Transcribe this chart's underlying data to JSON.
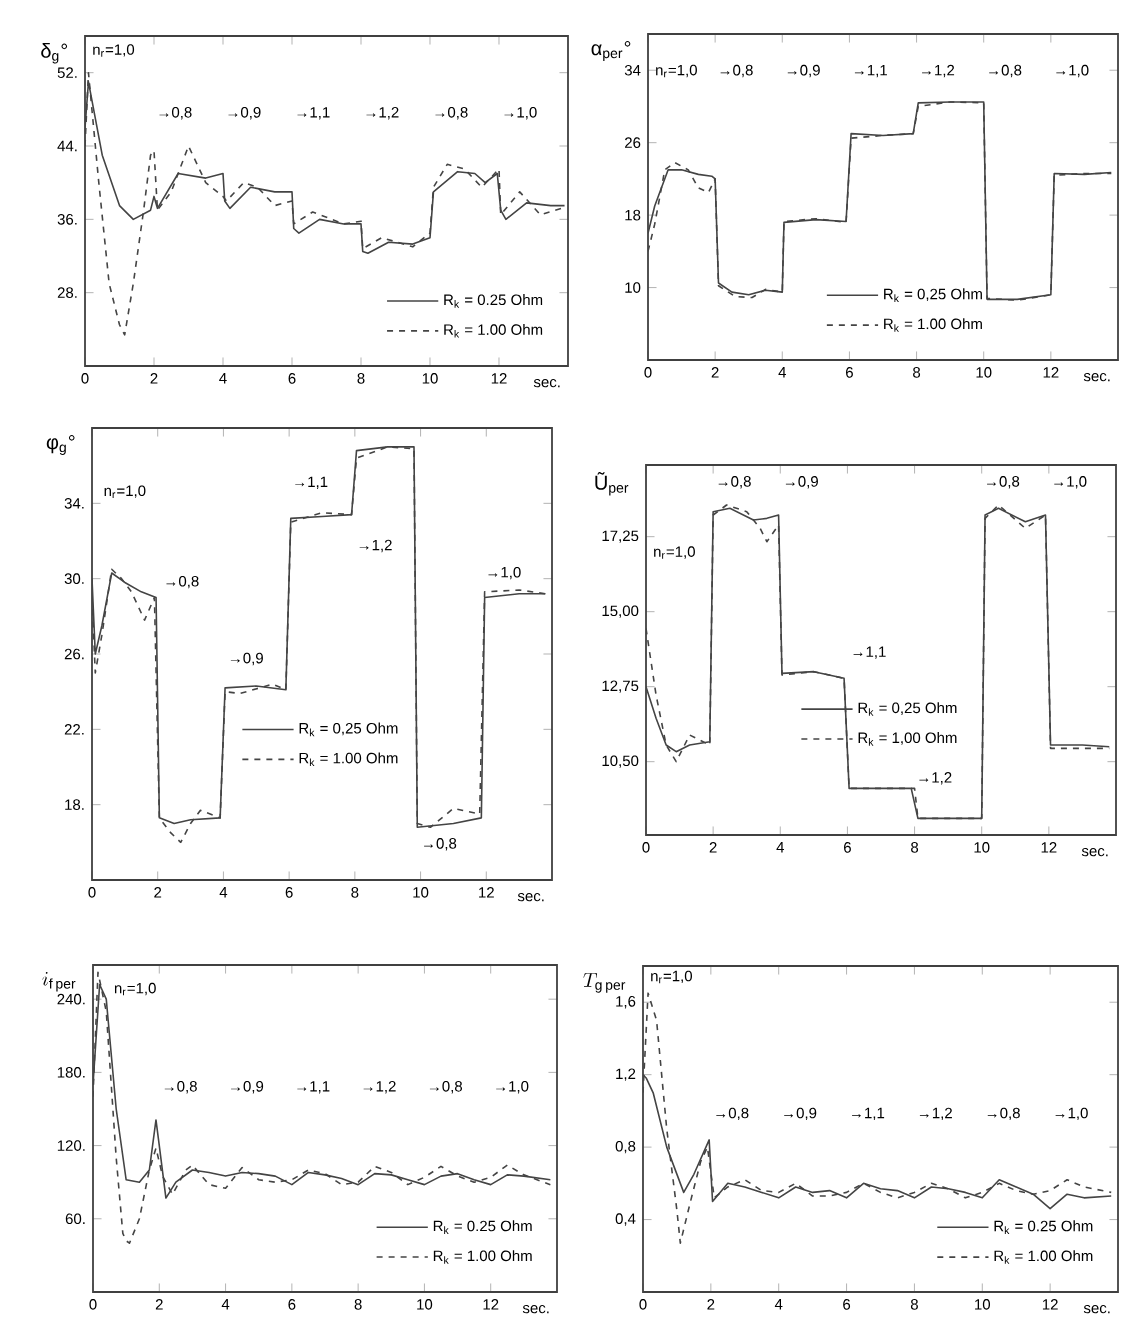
{
  "chart_data": [
    {
      "type": "line",
      "ylabel": "δ$_{g}$°",
      "xlabel": "sec.",
      "xlim": [
        0,
        14
      ],
      "ylim": [
        20,
        56
      ],
      "xticks": [
        0,
        2,
        4,
        6,
        8,
        10,
        12
      ],
      "yticks": [
        {
          "value": 28,
          "label": "28."
        },
        {
          "value": 36,
          "label": "36."
        },
        {
          "value": 44,
          "label": "44."
        },
        {
          "value": 52,
          "label": "52."
        }
      ],
      "legend": "bottom right",
      "series": [
        {
          "name": "R$_{k}$ = 0.25 Ohm",
          "color": "#444444",
          "line_style": "solid",
          "x": [
            0,
            0.1,
            0.5,
            1.0,
            1.4,
            1.9,
            2.0,
            2.1,
            2.7,
            3.5,
            4.0,
            4.05,
            4.2,
            4.8,
            5.5,
            6.0,
            6.05,
            6.2,
            6.8,
            7.5,
            8.0,
            8.05,
            8.2,
            8.8,
            9.5,
            10.0,
            10.1,
            10.8,
            11.3,
            11.6,
            11.95,
            12.05,
            12.2,
            12.8,
            13.5,
            13.9
          ],
          "values": [
            46,
            51,
            43,
            37.5,
            36,
            37,
            38.5,
            37.2,
            41,
            40.5,
            41,
            38,
            37.2,
            39.5,
            39,
            39,
            35,
            34.5,
            36,
            35.5,
            35.5,
            32.5,
            32.3,
            33.5,
            33.3,
            34,
            39,
            41.2,
            41,
            40,
            41,
            37,
            36,
            37.8,
            37.5,
            37.5
          ]
        },
        {
          "name": "R$_{k}$ = 1.00 Ohm",
          "color": "#444444",
          "line_style": "dashed",
          "x": [
            0,
            0.1,
            0.4,
            0.7,
            1.0,
            1.15,
            1.4,
            1.7,
            1.9,
            2.0,
            2.1,
            2.5,
            3.0,
            3.5,
            4.0,
            4.1,
            4.6,
            5.0,
            5.5,
            6.0,
            6.05,
            6.6,
            7.5,
            8.0,
            8.05,
            8.6,
            9.5,
            10.0,
            10.1,
            10.5,
            11.0,
            11.5,
            12.0,
            12.05,
            12.6,
            13.2,
            13.9
          ],
          "values": [
            44,
            52,
            40,
            29,
            24.5,
            23.4,
            29,
            37,
            43,
            43.5,
            37,
            39,
            44,
            40,
            38.5,
            38,
            40,
            39.5,
            37.5,
            38,
            35.5,
            36.8,
            35.5,
            35.8,
            32.8,
            34,
            33,
            34.5,
            39.5,
            42,
            41.5,
            39.5,
            41.5,
            36.5,
            39,
            36.5,
            37.3
          ]
        }
      ],
      "annotations": [
        "n$_{r}$=1,0",
        "→0,8",
        "→0,9",
        "→1,1",
        "→1,2",
        "→0,8",
        "→1,0"
      ]
    },
    {
      "type": "line",
      "ylabel": "α$_{per}$°",
      "xlabel": "sec.",
      "xlim": [
        0,
        14
      ],
      "ylim": [
        2,
        38
      ],
      "xticks": [
        0,
        2,
        4,
        6,
        8,
        10,
        12
      ],
      "yticks": [
        10,
        18,
        26,
        34
      ],
      "legend": "bottom",
      "series": [
        {
          "name": "R$_{k}$ = 0,25 Ohm",
          "color": "#444444",
          "line_style": "solid",
          "x": [
            0,
            0.2,
            0.6,
            1.0,
            1.5,
            1.9,
            2.0,
            2.1,
            2.5,
            3.0,
            3.5,
            4.0,
            4.05,
            5.0,
            5.9,
            6.05,
            7.0,
            7.9,
            8.05,
            9.0,
            10.0,
            10.1,
            11.0,
            12.0,
            12.1,
            13.0,
            13.8
          ],
          "values": [
            16,
            19,
            23,
            23,
            22.5,
            22.3,
            22,
            10.5,
            9.5,
            9.2,
            9.7,
            9.5,
            17.2,
            17.5,
            17.3,
            27,
            26.8,
            27,
            30.4,
            30.5,
            30.5,
            8.7,
            8.7,
            9.2,
            22.6,
            22.5,
            22.7
          ]
        },
        {
          "name": "R$_{k}$ = 1.00 Ohm",
          "color": "#444444",
          "line_style": "dashed",
          "x": [
            0,
            0.2,
            0.5,
            0.8,
            1.2,
            1.5,
            1.8,
            2.0,
            2.1,
            2.6,
            3.1,
            3.5,
            4.0,
            4.05,
            5.0,
            5.9,
            6.05,
            7.0,
            7.9,
            8.05,
            9.0,
            10.0,
            10.1,
            11.0,
            12.0,
            12.1,
            13.0,
            13.8
          ],
          "values": [
            14,
            17,
            23,
            23.8,
            23,
            21,
            20.5,
            22,
            10.2,
            9,
            8.9,
            9.8,
            9.5,
            17.3,
            17.6,
            17.2,
            26.5,
            26.8,
            27,
            30,
            30.5,
            30.4,
            8.8,
            8.6,
            9.2,
            22.4,
            22.6,
            22.6
          ]
        }
      ],
      "annotations": [
        "n$_{r}$=1,0",
        "→0,8",
        "→0,9",
        "→1,1",
        "→1,2",
        "→0,8",
        "→1,0"
      ]
    },
    {
      "type": "line",
      "ylabel": "φ$_{g}$°",
      "xlabel": "sec.",
      "xlim": [
        0,
        14
      ],
      "ylim": [
        14,
        38
      ],
      "xticks": [
        0,
        2,
        4,
        6,
        8,
        10,
        12
      ],
      "yticks": [
        {
          "value": 18,
          "label": "18."
        },
        {
          "value": 22,
          "label": "22."
        },
        {
          "value": 26,
          "label": "26."
        },
        {
          "value": 30,
          "label": "30."
        },
        {
          "value": 34,
          "label": "34."
        }
      ],
      "legend": "center",
      "series": [
        {
          "name": "R$_{k}$ = 0,25 Ohm",
          "color": "#444444",
          "line_style": "solid",
          "x": [
            0,
            0.1,
            0.3,
            0.6,
            1.0,
            1.5,
            1.95,
            2.05,
            2.5,
            3.0,
            3.9,
            4.05,
            5.0,
            5.9,
            6.05,
            7.0,
            7.9,
            8.05,
            9.0,
            9.8,
            9.9,
            11.0,
            11.85,
            11.95,
            13.0,
            13.8
          ],
          "values": [
            30,
            26,
            27.5,
            30.3,
            29.8,
            29.3,
            29,
            17.3,
            17,
            17.2,
            17.3,
            24.2,
            24.3,
            24.1,
            33.2,
            33.3,
            33.4,
            36.8,
            37,
            37,
            16.8,
            17,
            17.3,
            29,
            29.2,
            29.2
          ]
        },
        {
          "name": "R$_{k}$ = 1.00 Ohm",
          "color": "#444444",
          "line_style": "dashed",
          "x": [
            0,
            0.1,
            0.3,
            0.6,
            0.9,
            1.2,
            1.6,
            1.9,
            2.05,
            2.4,
            2.7,
            3.0,
            3.3,
            3.9,
            4.05,
            4.5,
            5.5,
            5.9,
            6.05,
            7.0,
            7.9,
            8.05,
            9.0,
            9.8,
            9.9,
            10.3,
            11.0,
            11.8,
            11.95,
            13.0,
            13.8
          ],
          "values": [
            29,
            25,
            27,
            30.5,
            30,
            29.3,
            27.8,
            29,
            17.3,
            16.5,
            16,
            17,
            17.7,
            17.3,
            24,
            23.9,
            24.4,
            24.1,
            33,
            33.5,
            33.4,
            36.4,
            37,
            36.9,
            17,
            16.8,
            17.8,
            17.5,
            29.3,
            29.4,
            29.2
          ]
        }
      ],
      "annotations": [
        "n$_{r}$=1,0",
        "→0,8",
        "→0,9",
        "→1,1",
        "→1,2",
        "→0,8",
        "→1,0"
      ]
    },
    {
      "type": "line",
      "ylabel": "Ũ$_{per}$",
      "xlabel": "sec.",
      "xlim": [
        0,
        14
      ],
      "ylim": [
        8.3,
        19.4
      ],
      "xticks": [
        0,
        2,
        4,
        6,
        8,
        10,
        12
      ],
      "yticks": [
        {
          "value": 10.5,
          "label": "10,50"
        },
        {
          "value": 12.75,
          "label": "12,75"
        },
        {
          "value": 15,
          "label": "15,00"
        },
        {
          "value": 17.25,
          "label": "17,25"
        }
      ],
      "legend": "center",
      "series": [
        {
          "name": "R$_{k}$ = 0,25 Ohm",
          "color": "#444444",
          "line_style": "solid",
          "x": [
            0,
            0.3,
            0.6,
            0.9,
            1.3,
            1.9,
            2.0,
            2.5,
            3.2,
            3.6,
            3.95,
            4.05,
            5.0,
            5.9,
            6.05,
            7.0,
            7.9,
            8.1,
            9.0,
            10.0,
            10.1,
            10.5,
            11.3,
            11.9,
            12.05,
            13.0,
            13.8
          ],
          "values": [
            12.75,
            11.8,
            11.0,
            10.8,
            11.0,
            11.1,
            18.0,
            18.1,
            17.75,
            17.8,
            17.9,
            13.15,
            13.2,
            13.0,
            9.7,
            9.7,
            9.7,
            8.8,
            8.8,
            8.8,
            17.9,
            18.1,
            17.7,
            17.9,
            11.0,
            11.0,
            10.95
          ]
        },
        {
          "name": "R$_{k}$ = 1,00 Ohm",
          "color": "#444444",
          "line_style": "dashed",
          "x": [
            0,
            0.3,
            0.6,
            0.9,
            1.3,
            1.9,
            2.0,
            2.4,
            3.0,
            3.4,
            3.6,
            3.95,
            4.05,
            5.0,
            5.9,
            6.05,
            8.0,
            8.1,
            10.0,
            10.1,
            10.5,
            11.3,
            11.9,
            12.05,
            13.8
          ],
          "values": [
            14.5,
            12.5,
            11,
            10.5,
            11.3,
            11.0,
            17.9,
            18.2,
            18.0,
            17.5,
            17.1,
            17.6,
            13.1,
            13.2,
            13.0,
            9.7,
            9.7,
            8.8,
            8.8,
            17.8,
            18.2,
            17.5,
            17.9,
            10.9,
            10.9
          ]
        }
      ],
      "annotations": [
        "n$_{r}$=1,0",
        "→0,8",
        "→0,9",
        "→1,1",
        "→1,2",
        "→0,8",
        "→1,0"
      ]
    },
    {
      "type": "line",
      "ylabel": "i_{\\mathrm{f\\,per}}",
      "xlabel": "sec.",
      "xlim": [
        0,
        14
      ],
      "ylim": [
        0,
        268
      ],
      "xticks": [
        0,
        2,
        4,
        6,
        8,
        10,
        12
      ],
      "yticks": [
        {
          "value": 60,
          "label": "60."
        },
        {
          "value": 120,
          "label": "120."
        },
        {
          "value": 180,
          "label": "180."
        },
        {
          "value": 240,
          "label": "240."
        }
      ],
      "legend": "bottom right",
      "series": [
        {
          "name": "R$_{k}$ = 0.25 Ohm",
          "color": "#444444",
          "line_style": "solid",
          "x": [
            0,
            0.2,
            0.4,
            0.7,
            1.0,
            1.4,
            1.7,
            1.9,
            2.0,
            2.2,
            2.5,
            3.0,
            3.5,
            4,
            4.5,
            5,
            5.5,
            6,
            6.5,
            7,
            7.5,
            8,
            8.5,
            9,
            9.5,
            10,
            10.5,
            11,
            11.5,
            12,
            12.5,
            13,
            13.8
          ],
          "values": [
            170,
            252,
            240,
            150,
            92,
            90,
            100,
            141,
            120,
            77,
            90,
            100,
            98,
            95,
            98,
            97,
            95,
            88,
            98,
            96,
            93,
            88,
            97,
            96,
            92,
            88,
            95,
            97,
            92,
            88,
            96,
            95,
            92
          ]
        },
        {
          "name": "R$_{k}$ = 1.00 Ohm",
          "color": "#444444",
          "line_style": "dashed",
          "x": [
            0,
            0.15,
            0.4,
            0.7,
            0.9,
            1.0,
            1.1,
            1.4,
            1.7,
            1.9,
            2.1,
            2.4,
            2.8,
            3.0,
            3.5,
            4.0,
            4.5,
            5.0,
            5.5,
            6.0,
            6.5,
            7.0,
            7.5,
            8.0,
            8.5,
            9.0,
            9.5,
            10.0,
            10.5,
            11.0,
            11.5,
            12.0,
            12.5,
            13.0,
            13.8
          ],
          "values": [
            160,
            262,
            230,
            110,
            48,
            42,
            40,
            60,
            100,
            118,
            95,
            80,
            100,
            104,
            88,
            85,
            102,
            92,
            90,
            92,
            100,
            97,
            88,
            90,
            103,
            98,
            88,
            94,
            103,
            95,
            90,
            94,
            104,
            96,
            88
          ]
        }
      ],
      "annotations": [
        "n$_{r}$=1,0",
        "→0,8",
        "→0,9",
        "→1,1",
        "→1,2",
        "→0,8",
        "→1,0"
      ]
    },
    {
      "type": "line",
      "ylabel": "T_{\\mathrm{g\\,per}}",
      "xlabel": "sec.",
      "xlim": [
        0,
        14
      ],
      "ylim": [
        0,
        1.8
      ],
      "xticks": [
        0,
        2,
        4,
        6,
        8,
        10,
        12
      ],
      "yticks": [
        {
          "value": 0.4,
          "label": "0,4"
        },
        {
          "value": 0.8,
          "label": "0,8"
        },
        {
          "value": 1.2,
          "label": "1,2"
        },
        {
          "value": 1.6,
          "label": "1,6"
        }
      ],
      "legend": "bottom right",
      "series": [
        {
          "name": "R$_{k}$ = 0.25 Ohm",
          "color": "#444444",
          "line_style": "solid",
          "x": [
            0,
            0.1,
            0.3,
            0.7,
            1.2,
            1.5,
            1.95,
            2.05,
            2.5,
            3.0,
            3.5,
            4.0,
            4.5,
            5.0,
            5.5,
            6.0,
            6.5,
            7.0,
            7.5,
            8.0,
            8.5,
            9,
            9.5,
            10,
            10.5,
            11,
            11.5,
            12,
            12.5,
            13,
            13.8
          ],
          "values": [
            1.2,
            1.18,
            1.1,
            0.8,
            0.55,
            0.65,
            0.84,
            0.5,
            0.6,
            0.58,
            0.55,
            0.52,
            0.58,
            0.55,
            0.56,
            0.52,
            0.6,
            0.57,
            0.56,
            0.52,
            0.58,
            0.57,
            0.55,
            0.52,
            0.62,
            0.58,
            0.54,
            0.46,
            0.54,
            0.52,
            0.53
          ]
        },
        {
          "name": "R$_{k}$ = 1.00 Ohm",
          "color": "#444444",
          "line_style": "dashed",
          "x": [
            0,
            0.15,
            0.4,
            0.7,
            1.0,
            1.1,
            1.4,
            1.7,
            1.9,
            2.1,
            2.5,
            3.0,
            3.5,
            4.0,
            4.5,
            5.0,
            5.5,
            6.0,
            6.5,
            7.0,
            7.5,
            8.0,
            8.5,
            9,
            9.5,
            10,
            10.5,
            11,
            11.5,
            12,
            12.5,
            13,
            13.8
          ],
          "values": [
            1.1,
            1.65,
            1.5,
            0.9,
            0.45,
            0.27,
            0.5,
            0.72,
            0.8,
            0.52,
            0.58,
            0.62,
            0.56,
            0.55,
            0.6,
            0.53,
            0.53,
            0.55,
            0.6,
            0.55,
            0.52,
            0.55,
            0.6,
            0.57,
            0.52,
            0.55,
            0.6,
            0.56,
            0.54,
            0.56,
            0.62,
            0.58,
            0.55
          ]
        }
      ],
      "annotations": [
        "n$_{r}$=1,0",
        "→0,8",
        "→0,9",
        "→1,1",
        "→1,2",
        "→0,8",
        "→1,0"
      ]
    }
  ]
}
